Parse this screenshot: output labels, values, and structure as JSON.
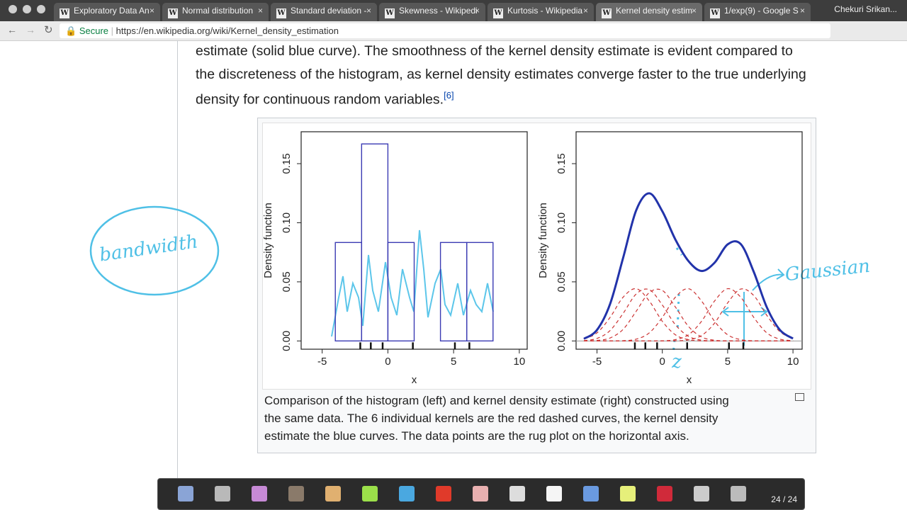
{
  "browser": {
    "tabs": [
      "Exploratory Data An",
      "Normal distribution",
      "Standard deviation -",
      "Skewness - Wikipedi",
      "Kurtosis - Wikipedia",
      "Kernel density estim",
      "1/exp(9) - Google S"
    ],
    "user": "Chekuri Srikan...",
    "secure": "Secure",
    "url": "https://en.wikipedia.org/wiki/Kernel_density_estimation"
  },
  "article": {
    "lines": [
      "estimate (solid blue curve). The smoothness of the kernel density estimate is evident compared to",
      "the discreteness of the histogram, as kernel density estimates converge faster to the true underlying",
      "density for continuous random variables."
    ],
    "ref": "[6]"
  },
  "chart_data": [
    {
      "type": "histogram",
      "xlabel": "x",
      "ylabel": "Density function",
      "bins": [
        -4,
        -2,
        0,
        2,
        4,
        6,
        8
      ],
      "values": [
        0.0833,
        0.1667,
        0.0833,
        0,
        0.0833,
        0.0833
      ],
      "color": "#3b3bb3",
      "rug": [
        -2.1,
        -1.3,
        -0.4,
        1.9,
        5.1,
        6.2
      ],
      "xlim": [
        -6.6,
        10.6
      ],
      "ylim": [
        -0.007,
        0.177
      ],
      "xticks": [
        -5,
        0,
        5,
        10
      ],
      "yticks": [
        {
          "value": 0,
          "label": "0.00"
        },
        {
          "value": 0.05,
          "label": "0.05"
        },
        {
          "value": 0.1,
          "label": "0.10"
        },
        {
          "value": 0.15,
          "label": "0.15"
        }
      ]
    },
    {
      "type": "line",
      "xlabel": "x",
      "ylabel": "Density function",
      "x": [
        -6,
        -5,
        -4,
        -3,
        -2,
        -1,
        0,
        1,
        2,
        3,
        4,
        5,
        6,
        7,
        8,
        9,
        10
      ],
      "series": [
        {
          "color": "#cc3333",
          "style": "dashed",
          "values": [
            0.0015,
            0.0068,
            0.0199,
            0.037,
            0.0442,
            0.0338,
            0.0166,
            0.0052,
            0.0011,
            0.0001,
            0,
            0,
            0,
            0,
            0,
            0,
            0
          ]
        },
        {
          "color": "#cc3333",
          "style": "dashed",
          "values": [
            0.0003,
            0.0021,
            0.0088,
            0.0233,
            0.0397,
            0.0434,
            0.0304,
            0.0137,
            0.0039,
            0.0007,
            0.0001,
            0,
            0,
            0,
            0,
            0,
            0
          ]
        },
        {
          "color": "#cc3333",
          "style": "dashed",
          "values": [
            0,
            0.0004,
            0.0025,
            0.0098,
            0.0251,
            0.0409,
            0.0427,
            0.0287,
            0.0123,
            0.0034,
            0.0006,
            0.0001,
            0,
            0,
            0,
            0,
            0
          ]
        },
        {
          "color": "#cc3333",
          "style": "dashed",
          "values": [
            0,
            0,
            0,
            0.0002,
            0.0015,
            0.0068,
            0.0199,
            0.037,
            0.0442,
            0.0338,
            0.0166,
            0.0052,
            0.0011,
            0.0001,
            0,
            0,
            0
          ]
        },
        {
          "color": "#cc3333",
          "style": "dashed",
          "values": [
            0,
            0,
            0,
            0,
            0,
            0,
            0.0001,
            0.0011,
            0.0052,
            0.0166,
            0.0338,
            0.0442,
            0.037,
            0.0199,
            0.0068,
            0.0015,
            0.0002
          ]
        },
        {
          "color": "#cc3333",
          "style": "dashed",
          "values": [
            0,
            0,
            0,
            0,
            0,
            0,
            0,
            0.0001,
            0.0009,
            0.0046,
            0.0151,
            0.0322,
            0.0439,
            0.0384,
            0.0216,
            0.0078,
            0.0018
          ]
        },
        {
          "color": "#2233aa",
          "style": "solid",
          "values": [
            0.0018,
            0.0093,
            0.0312,
            0.0703,
            0.1105,
            0.1249,
            0.1097,
            0.0858,
            0.0676,
            0.0592,
            0.0662,
            0.0817,
            0.082,
            0.0584,
            0.0284,
            0.0093,
            0.002
          ]
        }
      ],
      "rug": [
        -2.1,
        -1.3,
        -0.4,
        1.9,
        5.1,
        6.2
      ],
      "xlim": [
        -6.6,
        10.7
      ],
      "ylim": [
        -0.007,
        0.177
      ],
      "xticks": [
        -5,
        0,
        5,
        10
      ],
      "yticks": [
        {
          "value": 0,
          "label": "0.00"
        },
        {
          "value": 0.05,
          "label": "0.05"
        },
        {
          "value": 0.1,
          "label": "0.10"
        },
        {
          "value": 0.15,
          "label": "0.15"
        }
      ]
    }
  ],
  "caption": {
    "lines": [
      "Comparison of the histogram (left) and kernel density estimate (right) constructed using",
      "the same data. The 6 individual kernels are the red dashed curves, the kernel density",
      "estimate the blue curves. The data points are the rug plot on the horizontal axis."
    ]
  },
  "annotations": [
    "bandwidth",
    "Gaussian",
    "z"
  ],
  "toolbar": {
    "page": "24 / 24"
  }
}
